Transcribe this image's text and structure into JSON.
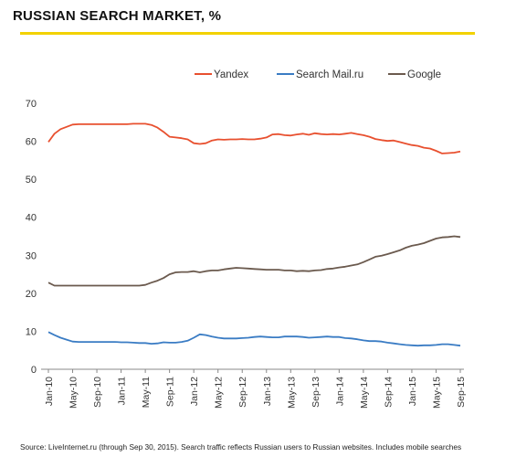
{
  "title": "RUSSIAN SEARCH MARKET, %",
  "footnote": "Source: LiveInternet.ru (through Sep 30, 2015). Search traffic reflects Russian users to Russian websites. Includes mobile searches",
  "colors": {
    "accent_rule": "#f2d100",
    "Yandex": "#e8502f",
    "Search Mail.ru": "#3a7cc4",
    "Google": "#6b5a4e",
    "axis": "#888888"
  },
  "chart_data": {
    "type": "line",
    "title": "RUSSIAN SEARCH MARKET, %",
    "xlabel": "",
    "ylabel": "",
    "ylim": [
      0,
      70
    ],
    "yticks": [
      0,
      10,
      20,
      30,
      40,
      50,
      60,
      70
    ],
    "grid": false,
    "legend_position": "top-center",
    "x_tick_labels": [
      "Jan-10",
      "May-10",
      "Sep-10",
      "Jan-11",
      "May-11",
      "Sep-11",
      "Jan-12",
      "May-12",
      "Sep-12",
      "Jan-13",
      "May-13",
      "Sep-13",
      "Jan-14",
      "May-14",
      "Sep-14",
      "Jan-15",
      "May-15",
      "Sep-15"
    ],
    "x": [
      "Jan-10",
      "Feb-10",
      "Mar-10",
      "Apr-10",
      "May-10",
      "Jun-10",
      "Jul-10",
      "Aug-10",
      "Sep-10",
      "Oct-10",
      "Nov-10",
      "Dec-10",
      "Jan-11",
      "Feb-11",
      "Mar-11",
      "Apr-11",
      "May-11",
      "Jun-11",
      "Jul-11",
      "Aug-11",
      "Sep-11",
      "Oct-11",
      "Nov-11",
      "Dec-11",
      "Jan-12",
      "Feb-12",
      "Mar-12",
      "Apr-12",
      "May-12",
      "Jun-12",
      "Jul-12",
      "Aug-12",
      "Sep-12",
      "Oct-12",
      "Nov-12",
      "Dec-12",
      "Jan-13",
      "Feb-13",
      "Mar-13",
      "Apr-13",
      "May-13",
      "Jun-13",
      "Jul-13",
      "Aug-13",
      "Sep-13",
      "Oct-13",
      "Nov-13",
      "Dec-13",
      "Jan-14",
      "Feb-14",
      "Mar-14",
      "Apr-14",
      "May-14",
      "Jun-14",
      "Jul-14",
      "Aug-14",
      "Sep-14",
      "Oct-14",
      "Nov-14",
      "Dec-14",
      "Jan-15",
      "Feb-15",
      "Mar-15",
      "Apr-15",
      "May-15",
      "Jun-15",
      "Jul-15",
      "Aug-15",
      "Sep-15"
    ],
    "series": [
      {
        "name": "Yandex",
        "values": [
          59.8,
          62.0,
          63.2,
          63.8,
          64.4,
          64.5,
          64.5,
          64.5,
          64.5,
          64.5,
          64.5,
          64.5,
          64.5,
          64.5,
          64.6,
          64.6,
          64.6,
          64.3,
          63.6,
          62.5,
          61.2,
          61.0,
          60.8,
          60.5,
          59.5,
          59.3,
          59.5,
          60.2,
          60.5,
          60.4,
          60.5,
          60.5,
          60.6,
          60.5,
          60.5,
          60.7,
          61.0,
          61.8,
          61.9,
          61.6,
          61.5,
          61.8,
          62.0,
          61.7,
          62.1,
          61.9,
          61.8,
          61.9,
          61.8,
          62.0,
          62.2,
          61.9,
          61.6,
          61.2,
          60.6,
          60.3,
          60.1,
          60.2,
          59.8,
          59.4,
          59.0,
          58.8,
          58.3,
          58.1,
          57.5,
          56.8,
          56.9,
          57.0,
          57.3
        ]
      },
      {
        "name": "Search Mail.ru",
        "values": [
          9.8,
          9.0,
          8.3,
          7.8,
          7.3,
          7.2,
          7.2,
          7.2,
          7.2,
          7.2,
          7.2,
          7.2,
          7.1,
          7.1,
          7.0,
          6.9,
          6.9,
          6.7,
          6.8,
          7.1,
          7.0,
          7.0,
          7.2,
          7.5,
          8.3,
          9.2,
          9.0,
          8.6,
          8.3,
          8.1,
          8.1,
          8.1,
          8.2,
          8.3,
          8.5,
          8.6,
          8.5,
          8.4,
          8.4,
          8.6,
          8.6,
          8.6,
          8.5,
          8.3,
          8.4,
          8.5,
          8.6,
          8.5,
          8.5,
          8.2,
          8.1,
          7.9,
          7.6,
          7.4,
          7.4,
          7.3,
          7.0,
          6.8,
          6.6,
          6.4,
          6.3,
          6.2,
          6.3,
          6.3,
          6.4,
          6.6,
          6.6,
          6.4,
          6.2
        ]
      },
      {
        "name": "Google",
        "values": [
          22.8,
          22.0,
          22.0,
          22.0,
          22.0,
          22.0,
          22.0,
          22.0,
          22.0,
          22.0,
          22.0,
          22.0,
          22.0,
          22.0,
          22.0,
          22.0,
          22.2,
          22.8,
          23.3,
          24.0,
          25.0,
          25.5,
          25.6,
          25.6,
          25.8,
          25.5,
          25.8,
          26.0,
          26.0,
          26.3,
          26.5,
          26.7,
          26.6,
          26.5,
          26.4,
          26.3,
          26.2,
          26.2,
          26.2,
          26.0,
          26.0,
          25.8,
          25.9,
          25.8,
          26.0,
          26.1,
          26.4,
          26.5,
          26.8,
          27.0,
          27.3,
          27.6,
          28.2,
          28.9,
          29.6,
          29.9,
          30.3,
          30.8,
          31.3,
          32.0,
          32.5,
          32.8,
          33.2,
          33.8,
          34.4,
          34.7,
          34.8,
          35.0,
          34.8
        ]
      }
    ]
  }
}
